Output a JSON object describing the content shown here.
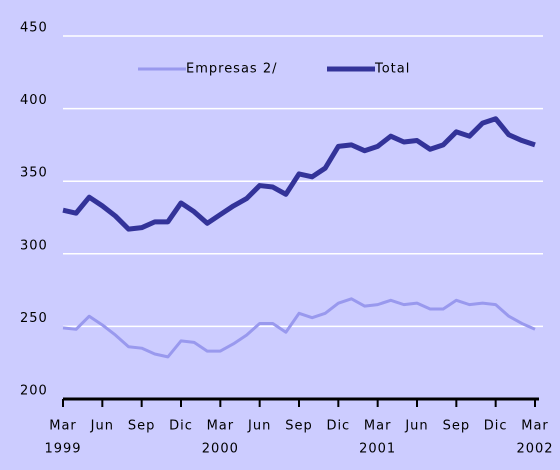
{
  "chart_data": {
    "type": "line",
    "categories": [
      "Mar",
      null,
      null,
      "Jun",
      null,
      null,
      "Sep",
      null,
      null,
      "Dic",
      null,
      null,
      "Mar",
      null,
      null,
      "Jun",
      null,
      null,
      "Sep",
      null,
      null,
      "Dic",
      null,
      null,
      "Mar",
      null,
      null,
      "Jun",
      null,
      null,
      "Sep",
      null,
      null,
      "Dic",
      null,
      null,
      "Mar"
    ],
    "year_labels": [
      "1999",
      null,
      null,
      null,
      null,
      null,
      null,
      null,
      null,
      null,
      null,
      null,
      "2000",
      null,
      null,
      null,
      null,
      null,
      null,
      null,
      null,
      null,
      null,
      null,
      "2001",
      null,
      null,
      null,
      null,
      null,
      null,
      null,
      null,
      null,
      null,
      null,
      "2002"
    ],
    "series": [
      {
        "name": "Empresas 2/",
        "color": "#9999ee",
        "values": [
          249,
          248,
          257,
          251,
          244,
          236,
          235,
          231,
          229,
          240,
          239,
          233,
          233,
          238,
          244,
          252,
          252,
          246,
          259,
          256,
          259,
          266,
          269,
          264,
          265,
          268,
          265,
          266,
          262,
          262,
          268,
          265,
          266,
          265,
          257,
          252,
          248
        ]
      },
      {
        "name": "Total",
        "color": "#333399",
        "values": [
          330,
          328,
          339,
          333,
          326,
          317,
          318,
          322,
          322,
          335,
          329,
          321,
          327,
          333,
          338,
          347,
          346,
          341,
          355,
          353,
          359,
          374,
          375,
          371,
          374,
          381,
          377,
          378,
          372,
          375,
          384,
          381,
          390,
          393,
          382,
          378,
          375
        ]
      }
    ],
    "ylim": [
      200,
      450
    ],
    "yticks": [
      200,
      250,
      300,
      350,
      400,
      450
    ],
    "grid": true
  }
}
